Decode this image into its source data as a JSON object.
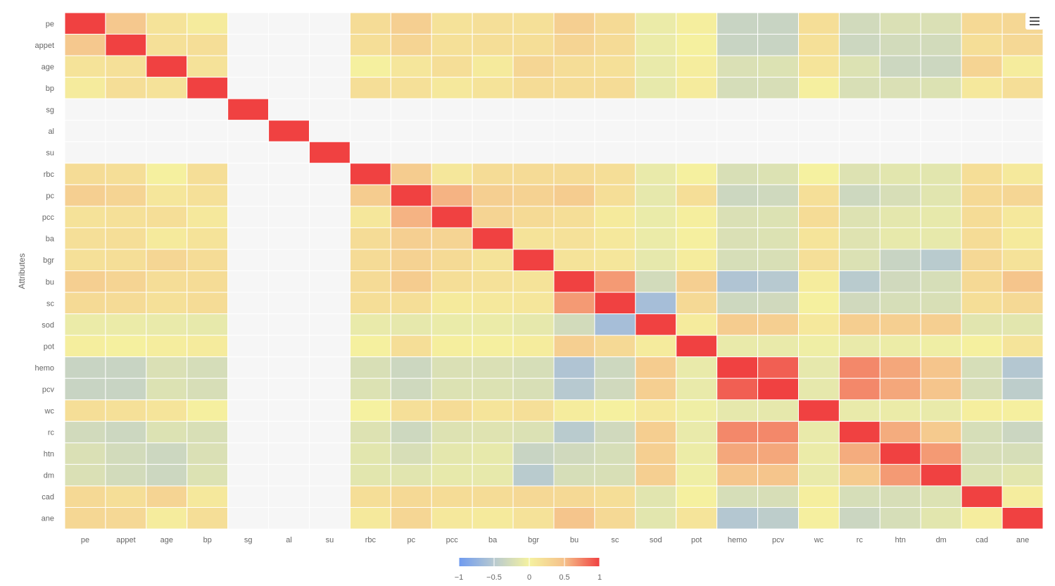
{
  "chart_data": {
    "type": "heatmap",
    "title": "",
    "xlabel": "",
    "ylabel": "Attributes",
    "categories": [
      "pe",
      "appet",
      "age",
      "bp",
      "sg",
      "al",
      "su",
      "rbc",
      "pc",
      "pcc",
      "ba",
      "bgr",
      "bu",
      "sc",
      "sod",
      "pot",
      "hemo",
      "pcv",
      "wc",
      "rc",
      "htn",
      "dm",
      "cad",
      "ane"
    ],
    "colorbar": {
      "min": -1,
      "max": 1,
      "ticks": [
        -1,
        -0.5,
        0,
        0.5,
        1
      ],
      "tick_labels": [
        "−1",
        "−0.5",
        "0",
        "0.5",
        "1"
      ]
    },
    "colors": {
      "neg": "#6f9bf0",
      "mid": "#f5f2a0",
      "pos": "#f04141",
      "empty": "#f6f6f6"
    },
    "empty_indices": [
      4,
      5,
      6
    ],
    "matrix": [
      [
        1,
        0.42,
        0.15,
        0.07,
        null,
        null,
        null,
        0.22,
        0.35,
        0.16,
        0.19,
        0.18,
        0.35,
        0.24,
        -0.08,
        0.04,
        -0.36,
        -0.36,
        0.2,
        -0.29,
        -0.22,
        -0.22,
        0.25,
        0.27
      ],
      [
        0.42,
        1,
        0.18,
        0.2,
        null,
        null,
        null,
        0.2,
        0.3,
        0.18,
        0.2,
        0.2,
        0.3,
        0.23,
        -0.08,
        0.02,
        -0.36,
        -0.36,
        0.18,
        -0.33,
        -0.28,
        -0.28,
        0.2,
        0.26
      ],
      [
        0.15,
        0.18,
        1,
        0.16,
        null,
        null,
        null,
        0.02,
        0.12,
        0.2,
        0.08,
        0.28,
        0.21,
        0.18,
        -0.1,
        0.05,
        -0.22,
        -0.2,
        0.14,
        -0.2,
        -0.33,
        -0.33,
        0.3,
        0.06
      ],
      [
        0.07,
        0.2,
        0.16,
        1,
        null,
        null,
        null,
        0.2,
        0.18,
        0.1,
        0.15,
        0.22,
        0.22,
        0.22,
        -0.11,
        0.07,
        -0.26,
        -0.24,
        0.03,
        -0.23,
        -0.22,
        -0.2,
        0.1,
        0.2
      ],
      [
        null,
        null,
        null,
        null,
        1,
        null,
        null,
        null,
        null,
        null,
        null,
        null,
        null,
        null,
        null,
        null,
        null,
        null,
        null,
        null,
        null,
        null,
        null,
        null
      ],
      [
        null,
        null,
        null,
        null,
        null,
        1,
        null,
        null,
        null,
        null,
        null,
        null,
        null,
        null,
        null,
        null,
        null,
        null,
        null,
        null,
        null,
        null,
        null,
        null
      ],
      [
        null,
        null,
        null,
        null,
        null,
        null,
        1,
        null,
        null,
        null,
        null,
        null,
        null,
        null,
        null,
        null,
        null,
        null,
        null,
        null,
        null,
        null,
        null,
        null
      ],
      [
        0.22,
        0.2,
        0.02,
        0.2,
        null,
        null,
        null,
        1,
        0.38,
        0.11,
        0.22,
        0.23,
        0.23,
        0.2,
        -0.1,
        0.02,
        -0.23,
        -0.2,
        0.01,
        -0.19,
        -0.15,
        -0.15,
        0.2,
        0.09
      ],
      [
        0.35,
        0.3,
        0.12,
        0.18,
        null,
        null,
        null,
        0.38,
        1,
        0.55,
        0.35,
        0.32,
        0.38,
        0.2,
        -0.12,
        0.2,
        -0.33,
        -0.31,
        0.19,
        -0.32,
        -0.24,
        -0.16,
        0.25,
        0.28
      ],
      [
        0.16,
        0.18,
        0.2,
        0.1,
        null,
        null,
        null,
        0.11,
        0.55,
        1,
        0.3,
        0.24,
        0.2,
        0.08,
        -0.09,
        0.04,
        -0.22,
        -0.2,
        0.22,
        -0.19,
        -0.14,
        -0.11,
        0.22,
        0.1
      ],
      [
        0.19,
        0.2,
        0.08,
        0.15,
        null,
        null,
        null,
        0.22,
        0.35,
        0.3,
        1,
        0.15,
        0.17,
        0.1,
        -0.08,
        0.03,
        -0.22,
        -0.2,
        0.14,
        -0.18,
        -0.11,
        -0.11,
        0.22,
        0.08
      ],
      [
        0.18,
        0.2,
        0.28,
        0.22,
        null,
        null,
        null,
        0.23,
        0.32,
        0.24,
        0.15,
        1,
        0.15,
        0.12,
        -0.12,
        0.06,
        -0.25,
        -0.23,
        0.19,
        -0.21,
        -0.36,
        -0.48,
        0.26,
        0.16
      ],
      [
        0.35,
        0.3,
        0.21,
        0.22,
        null,
        null,
        null,
        0.23,
        0.38,
        0.2,
        0.17,
        0.15,
        1,
        0.65,
        -0.28,
        0.35,
        -0.55,
        -0.5,
        0.06,
        -0.48,
        -0.3,
        -0.25,
        0.25,
        0.45
      ],
      [
        0.24,
        0.23,
        0.18,
        0.22,
        null,
        null,
        null,
        0.2,
        0.2,
        0.08,
        0.1,
        0.12,
        0.65,
        1,
        -0.62,
        0.25,
        -0.32,
        -0.3,
        0.02,
        -0.3,
        -0.25,
        -0.23,
        0.2,
        0.25
      ],
      [
        -0.08,
        -0.08,
        -0.1,
        -0.11,
        null,
        null,
        null,
        -0.1,
        -0.12,
        -0.09,
        -0.08,
        -0.12,
        -0.28,
        -0.62,
        1,
        0.07,
        0.38,
        0.35,
        0.1,
        0.36,
        0.35,
        0.35,
        -0.16,
        -0.15
      ],
      [
        0.04,
        0.02,
        0.05,
        0.07,
        null,
        null,
        null,
        0.02,
        0.2,
        0.04,
        0.03,
        0.06,
        0.35,
        0.25,
        0.07,
        1,
        -0.1,
        -0.1,
        -0.05,
        -0.1,
        -0.07,
        -0.05,
        0.02,
        0.14
      ],
      [
        -0.36,
        -0.36,
        -0.22,
        -0.26,
        null,
        null,
        null,
        -0.23,
        -0.33,
        -0.22,
        -0.22,
        -0.25,
        -0.55,
        -0.32,
        0.38,
        -0.1,
        1,
        0.88,
        -0.12,
        0.72,
        0.6,
        0.45,
        -0.25,
        -0.52
      ],
      [
        -0.36,
        -0.36,
        -0.2,
        -0.24,
        null,
        null,
        null,
        -0.2,
        -0.31,
        -0.2,
        -0.2,
        -0.23,
        -0.5,
        -0.3,
        0.35,
        -0.1,
        0.88,
        1,
        -0.12,
        0.72,
        0.6,
        0.45,
        -0.24,
        -0.45
      ],
      [
        0.2,
        0.18,
        0.14,
        0.03,
        null,
        null,
        null,
        0.01,
        0.19,
        0.22,
        0.14,
        0.19,
        0.06,
        0.02,
        0.1,
        -0.05,
        -0.12,
        -0.12,
        1,
        -0.1,
        -0.08,
        -0.1,
        0.04,
        0.03
      ],
      [
        -0.29,
        -0.33,
        -0.2,
        -0.23,
        null,
        null,
        null,
        -0.19,
        -0.32,
        -0.19,
        -0.18,
        -0.21,
        -0.48,
        -0.3,
        0.36,
        -0.1,
        0.72,
        0.72,
        -0.1,
        1,
        0.58,
        0.4,
        -0.25,
        -0.34
      ],
      [
        -0.22,
        -0.28,
        -0.33,
        -0.22,
        null,
        null,
        null,
        -0.15,
        -0.24,
        -0.14,
        -0.11,
        -0.36,
        -0.3,
        -0.25,
        0.35,
        -0.07,
        0.6,
        0.6,
        -0.08,
        0.58,
        1,
        0.65,
        -0.24,
        -0.25
      ],
      [
        -0.22,
        -0.28,
        -0.33,
        -0.2,
        null,
        null,
        null,
        -0.15,
        -0.16,
        -0.11,
        -0.11,
        -0.48,
        -0.25,
        -0.23,
        0.35,
        -0.05,
        0.45,
        0.45,
        -0.1,
        0.4,
        0.65,
        1,
        -0.2,
        -0.15
      ],
      [
        0.25,
        0.2,
        0.3,
        0.1,
        null,
        null,
        null,
        0.2,
        0.25,
        0.22,
        0.22,
        0.26,
        0.25,
        0.2,
        -0.16,
        0.02,
        -0.25,
        -0.24,
        0.04,
        -0.25,
        -0.24,
        -0.2,
        1,
        0.05
      ],
      [
        0.27,
        0.26,
        0.06,
        0.2,
        null,
        null,
        null,
        0.09,
        0.28,
        0.1,
        0.08,
        0.16,
        0.45,
        0.25,
        -0.15,
        0.14,
        -0.52,
        -0.45,
        0.03,
        -0.34,
        -0.25,
        -0.15,
        0.05,
        1
      ]
    ]
  },
  "toolbar": {
    "menu_icon": "hamburger-menu-icon"
  }
}
